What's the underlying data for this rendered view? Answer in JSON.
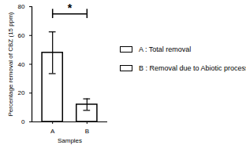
{
  "chart_data": {
    "type": "bar",
    "x_label": "Samples",
    "y_label": "Percentage removal of CBZ (15 ppm)",
    "categories": [
      "A",
      "B"
    ],
    "values": [
      48,
      12
    ],
    "errors": [
      14.5,
      4
    ],
    "color": "white",
    "ylim": [
      0,
      80
    ],
    "yticks": [
      0,
      20,
      40,
      60,
      80
    ],
    "grid": false,
    "legend": "right",
    "legend_labels": [
      "A : Total removal",
      "B : Removal due to Abiotic process"
    ],
    "annotations": [
      {
        "text": "*",
        "from": "A",
        "to": "B",
        "y": 75
      }
    ]
  }
}
